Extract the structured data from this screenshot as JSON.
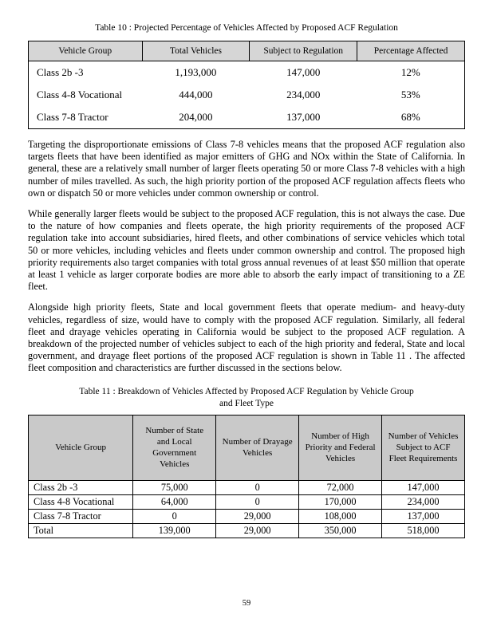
{
  "table10": {
    "caption": "Table 10 : Projected Percentage of Vehicles Affected by Proposed ACF Regulation",
    "headers": [
      "Vehicle Group",
      "Total Vehicles",
      "Subject to Regulation",
      "Percentage Affected"
    ],
    "rows": [
      [
        "Class 2b -3",
        "1,193,000",
        "147,000",
        "12%"
      ],
      [
        "Class 4-8 Vocational",
        "444,000",
        "234,000",
        "53%"
      ],
      [
        "Class 7-8 Tractor",
        "204,000",
        "137,000",
        "68%"
      ]
    ]
  },
  "paragraphs": [
    "Targeting the disproportionate emissions of Class 7-8 vehicles means that the proposed ACF regulation also targets fleets that have been identified as major emitters of GHG and NOx within the State of California. In general, these are a relatively small number of larger fleets operating 50 or more Class 7-8 vehicles with a high number of miles travelled. As such, the high priority portion of the proposed ACF regulation affects fleets who own or dispatch 50 or more vehicles under common ownership or control.",
    "While generally larger fleets would be subject to the proposed ACF regulation, this is not always the case. Due to the nature of how companies and fleets operate, the high priority requirements of the proposed ACF regulation take into account subsidiaries, hired fleets, and other combinations of service vehicles which total 50 or more vehicles, including vehicles and fleets under common ownership and control. The proposed high priority requirements also target companies with total gross annual revenues of at least $50 million that operate at least 1 vehicle as larger corporate bodies are more able to absorb the early impact of transitioning to a ZE fleet.",
    "Alongside high priority fleets, State and local government fleets that operate medium- and heavy-duty vehicles, regardless of size, would have to comply with the proposed ACF regulation. Similarly, all federal fleet and drayage vehicles operating in California would be subject to the proposed ACF regulation. A breakdown of the projected number of vehicles subject to each of the high priority and federal, State and local government, and drayage fleet portions of the proposed ACF regulation is shown in Table 11 . The affected fleet composition and characteristics are further discussed in the sections below."
  ],
  "table11": {
    "caption_line1": "Table 11 : Breakdown of Vehicles Affected by Proposed ACF Regulation by Vehicle Group",
    "caption_line2": "and Fleet Type",
    "headers": [
      "Vehicle Group",
      "Number of State and Local Government Vehicles",
      "Number of Drayage Vehicles",
      "Number of High Priority and Federal Vehicles",
      "Number of Vehicles Subject to ACF Fleet Requirements"
    ],
    "rows": [
      [
        "Class 2b -3",
        "75,000",
        "0",
        "72,000",
        "147,000"
      ],
      [
        "Class 4-8 Vocational",
        "64,000",
        "0",
        "170,000",
        "234,000"
      ],
      [
        "Class 7-8 Tractor",
        "0",
        "29,000",
        "108,000",
        "137,000"
      ],
      [
        "Total",
        "139,000",
        "29,000",
        "350,000",
        "518,000"
      ]
    ]
  },
  "page": {
    "number": "59"
  }
}
